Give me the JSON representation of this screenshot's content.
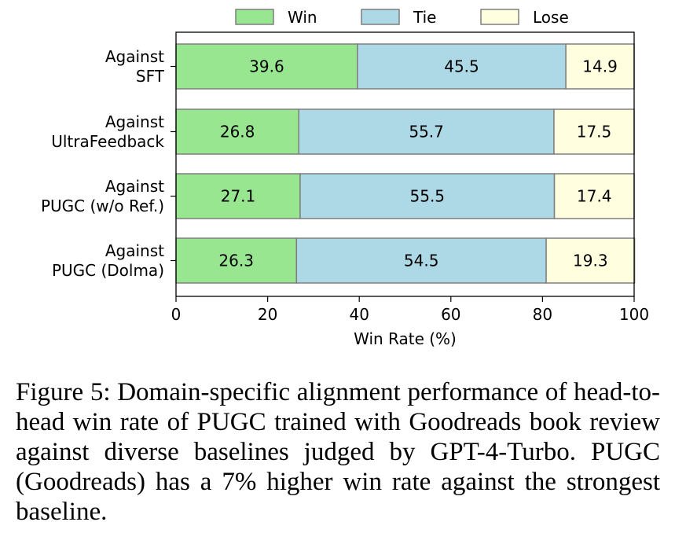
{
  "chart_data": {
    "type": "bar",
    "orientation": "horizontal",
    "stacked": true,
    "categories": [
      [
        "Against",
        "SFT"
      ],
      [
        "Against",
        "UltraFeedback"
      ],
      [
        "Against",
        "PUGC (w/o Ref.)"
      ],
      [
        "Against",
        "PUGC (Dolma)"
      ]
    ],
    "series": [
      {
        "name": "Win",
        "color": "#98e690",
        "values": [
          39.6,
          26.8,
          27.1,
          26.3
        ]
      },
      {
        "name": "Tie",
        "color": "#add8e6",
        "values": [
          45.5,
          55.7,
          55.5,
          54.5
        ]
      },
      {
        "name": "Lose",
        "color": "#ffffe0",
        "values": [
          14.9,
          17.5,
          17.4,
          19.3
        ]
      }
    ],
    "xlabel": "Win Rate (%)",
    "xlim": [
      0,
      100
    ],
    "xticks": [
      0,
      20,
      40,
      60,
      80,
      100
    ],
    "legend_position": "top",
    "grid": false
  },
  "caption": "Figure 5: Domain-specific alignment performance of head-to-head win rate of PUGC trained with Goodreads book review against diverse baselines judged by GPT-4-Turbo. PUGC (Goodreads) has a 7% higher win rate against the strongest baseline."
}
